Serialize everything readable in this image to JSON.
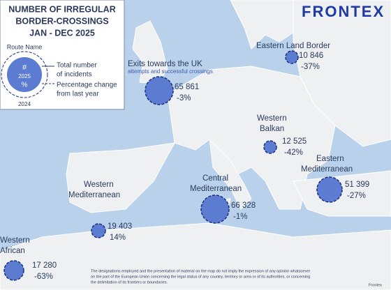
{
  "header": {
    "title_lines": [
      "NUMBER OF IRREGULAR",
      "BORDER-CROSSINGS",
      "JAN - DEC 2025"
    ],
    "logo": "FRONTEX"
  },
  "legend": {
    "route_name": "Route Name",
    "symbol_number": "#",
    "symbol_year": "2025",
    "symbol_percent": "%",
    "symbol_prev_year": "2024",
    "descriptions": [
      "Total number",
      "of incidents",
      "Percentage change",
      "from last year"
    ]
  },
  "routes": [
    {
      "name_lines": [
        "Exits towards the UK"
      ],
      "subtitle": "attempts and successful crossings",
      "total": "65 861",
      "change": "-3%"
    },
    {
      "name_lines": [
        "Eastern Land Border"
      ],
      "total": "10 846",
      "change": "-37%"
    },
    {
      "name_lines": [
        "Western",
        "Balkan"
      ],
      "total": "12 525",
      "change": "-42%"
    },
    {
      "name_lines": [
        "Eastern",
        "Mediterranean"
      ],
      "total": "51 399",
      "change": "-27%"
    },
    {
      "name_lines": [
        "Central",
        "Mediterranean"
      ],
      "total": "66 328",
      "change": "-1%"
    },
    {
      "name_lines": [
        "Western",
        "Mediterranean"
      ],
      "total": "19 403",
      "change": "14%"
    },
    {
      "name_lines": [
        "Western",
        "African"
      ],
      "total": "17 280",
      "change": "-63%"
    }
  ],
  "footer": {
    "disclaimer_lines": [
      "The designations employed and the presentation of material on the map do not imply the expression of any opinion whatsoever",
      "on the part of the European Union concerning the legal status of any country, territory or area or of its authorities, or concerning",
      "the delimitation of its frontiers or boundaries."
    ],
    "credit": "Frontex"
  }
}
